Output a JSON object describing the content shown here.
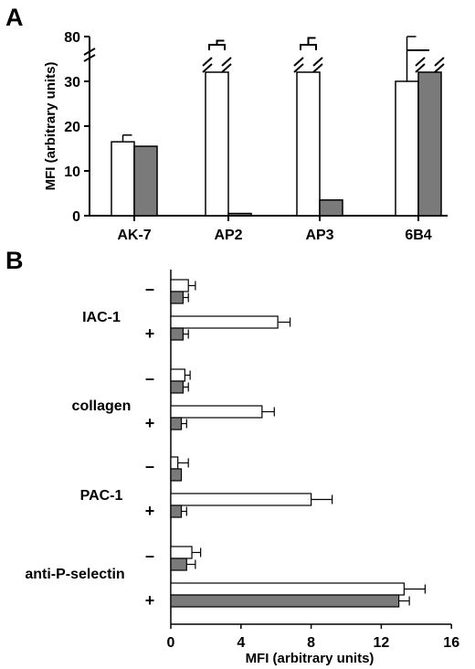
{
  "panels": [
    {
      "letter": "A",
      "chart_data": {
        "type": "bar",
        "orientation": "vertical",
        "ylabel": "MFI (arbitrary units)",
        "categories": [
          "AK-7",
          "AP2",
          "AP3",
          "6B4"
        ],
        "series": [
          {
            "fill": "#ffffff",
            "values": [
              16.5,
              80,
              80,
              30
            ],
            "errors": [
              1.5,
              1.5,
              2.5,
              3
            ]
          },
          {
            "fill": "#7a7a7a",
            "values": [
              15.5,
              0.5,
              3.5,
              80
            ],
            "errors": [
              0,
              0,
              0,
              0
            ]
          }
        ],
        "axis_break": {
          "between": [
            30,
            80
          ]
        },
        "y_ticks": [
          "0",
          "10",
          "20",
          "30",
          "80"
        ],
        "ylim": [
          0,
          80
        ]
      }
    },
    {
      "letter": "B",
      "chart_data": {
        "type": "bar",
        "orientation": "horizontal",
        "xlabel": "MFI (arbitrary units)",
        "xlim": [
          0,
          16
        ],
        "x_ticks": [
          "0",
          "4",
          "8",
          "12",
          "16"
        ],
        "groups": [
          {
            "label": "IAC-1",
            "conditions": [
              {
                "sign": "–",
                "white": 1.0,
                "white_err": 0.4,
                "gray": 0.7,
                "gray_err": 0.3
              },
              {
                "sign": "+",
                "white": 6.1,
                "white_err": 0.7,
                "gray": 0.7,
                "gray_err": 0.3
              }
            ]
          },
          {
            "label": "collagen",
            "conditions": [
              {
                "sign": "–",
                "white": 0.8,
                "white_err": 0.3,
                "gray": 0.7,
                "gray_err": 0.3
              },
              {
                "sign": "+",
                "white": 5.2,
                "white_err": 0.7,
                "gray": 0.6,
                "gray_err": 0.3
              }
            ]
          },
          {
            "label": "PAC-1",
            "conditions": [
              {
                "sign": "–",
                "white": 0.4,
                "white_err": 0.6,
                "gray": 0.6,
                "gray_err": 0
              },
              {
                "sign": "+",
                "white": 8.0,
                "white_err": 1.2,
                "gray": 0.6,
                "gray_err": 0.3
              }
            ]
          },
          {
            "label": "anti-P-selectin",
            "conditions": [
              {
                "sign": "–",
                "white": 1.2,
                "white_err": 0.5,
                "gray": 0.9,
                "gray_err": 0.5
              },
              {
                "sign": "+",
                "white": 13.3,
                "white_err": 1.2,
                "gray": 13.0,
                "gray_err": 0.6
              }
            ]
          }
        ]
      }
    }
  ]
}
